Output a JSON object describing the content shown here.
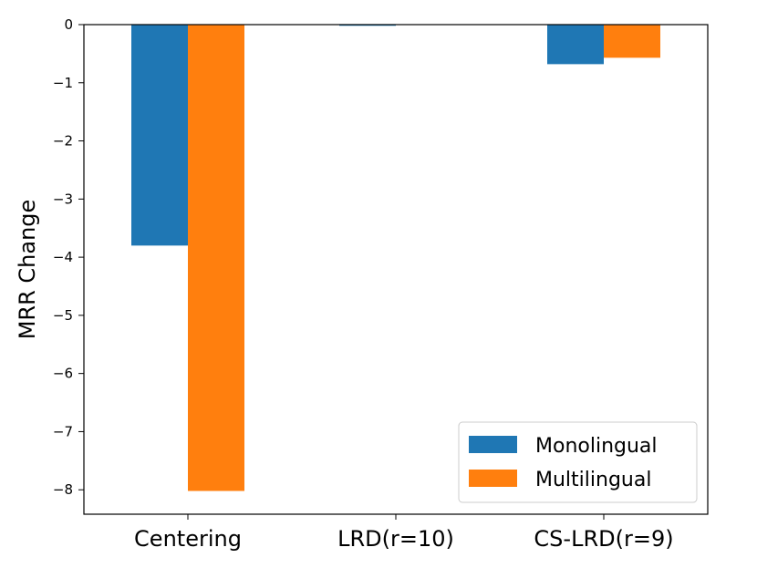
{
  "chart_data": {
    "type": "bar",
    "title": "",
    "xlabel": "",
    "ylabel": "MRR Change",
    "categories": [
      "Centering",
      "LRD(r=10)",
      "CS-LRD(r=9)"
    ],
    "series": [
      {
        "name": "Monolingual",
        "values": [
          -3.8,
          -0.02,
          -0.68
        ],
        "color": "#1f77b4"
      },
      {
        "name": "Multilingual",
        "values": [
          -8.02,
          0.0,
          -0.57
        ],
        "color": "#ff7f0e"
      }
    ],
    "yticks": [
      0,
      -1,
      -2,
      -3,
      -4,
      -5,
      -6,
      -7,
      -8
    ],
    "ytick_labels": [
      "0",
      "−1",
      "−2",
      "−3",
      "−4",
      "−5",
      "−6",
      "−7",
      "−8"
    ],
    "ylim": [
      -8.42,
      0
    ],
    "grid": false,
    "legend": "lower-right"
  }
}
